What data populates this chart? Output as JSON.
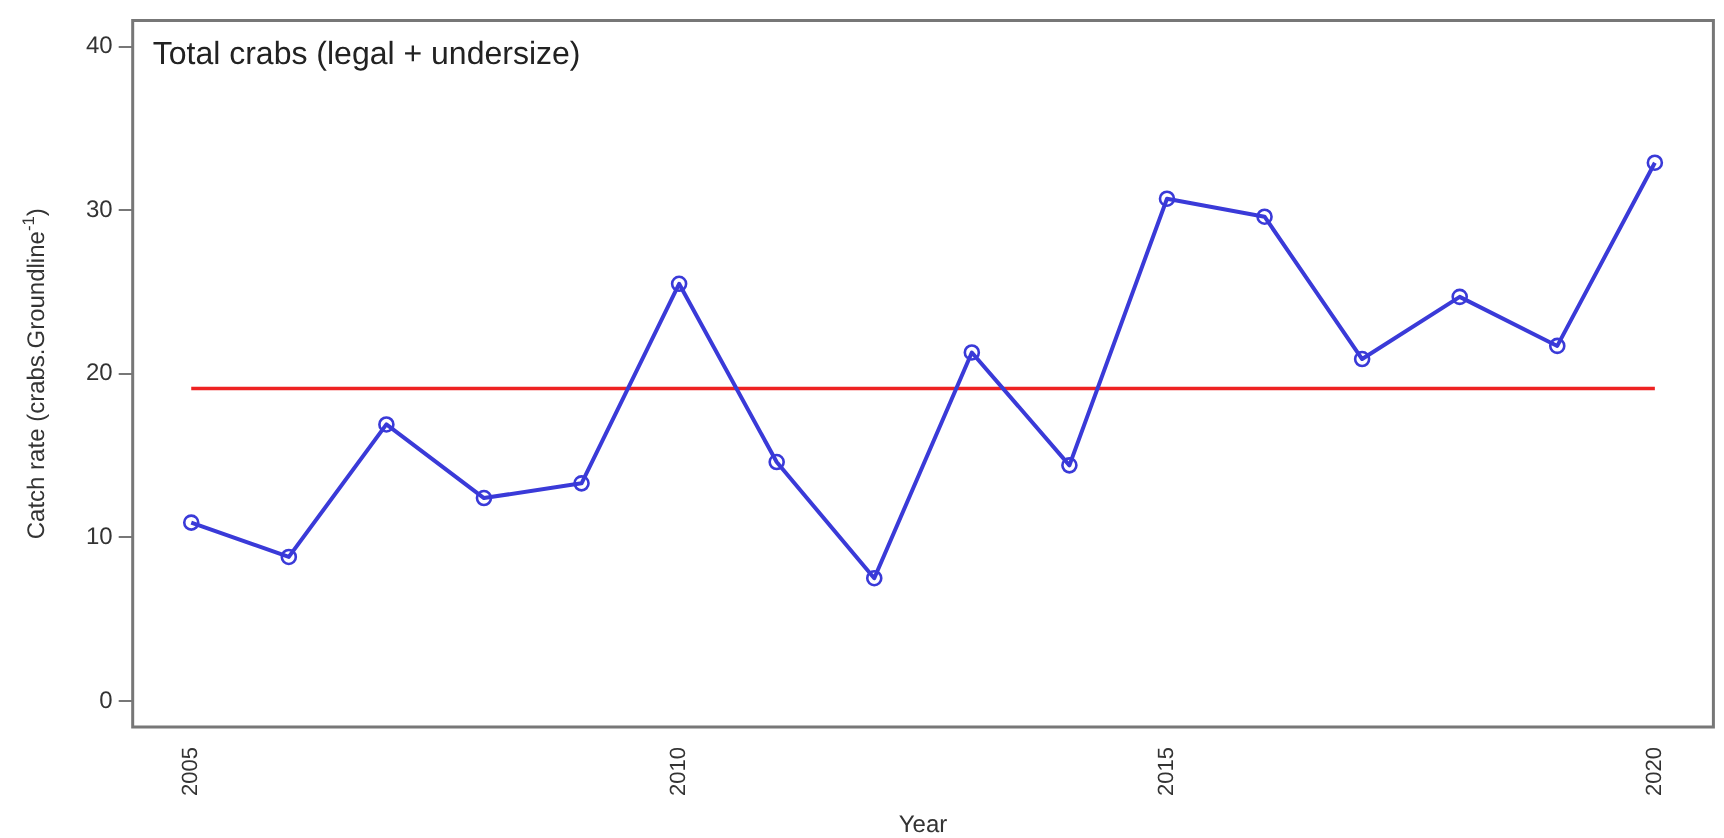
{
  "chart_data": {
    "type": "line",
    "title": "Total crabs (legal + undersize)",
    "xlabel": "Year",
    "ylabel": "Catch rate (crabs.Groundline$^{-1}$)",
    "x": [
      2005,
      2006,
      2007,
      2008,
      2009,
      2010,
      2011,
      2012,
      2013,
      2014,
      2015,
      2016,
      2017,
      2018,
      2019,
      2020
    ],
    "series": [
      {
        "color": "#3a3ad8",
        "values": [
          10.9,
          8.8,
          16.9,
          12.4,
          13.3,
          25.5,
          14.6,
          7.5,
          21.3,
          14.4,
          30.7,
          29.6,
          20.9,
          24.7,
          21.7,
          32.9
        ]
      }
    ],
    "xlim": [
      2004.4,
      2020.6
    ],
    "xticks": [
      2005,
      2010,
      2015,
      2020
    ],
    "ylim": [
      -1.6,
      41.6
    ],
    "yticks": [
      0,
      10,
      20,
      30,
      40
    ],
    "ref_lines": [
      {
        "axis": "y",
        "value": 19.1,
        "color": "#ee2222"
      }
    ],
    "grid": false,
    "legend": false,
    "marker": "circle",
    "line_style": "solid"
  }
}
